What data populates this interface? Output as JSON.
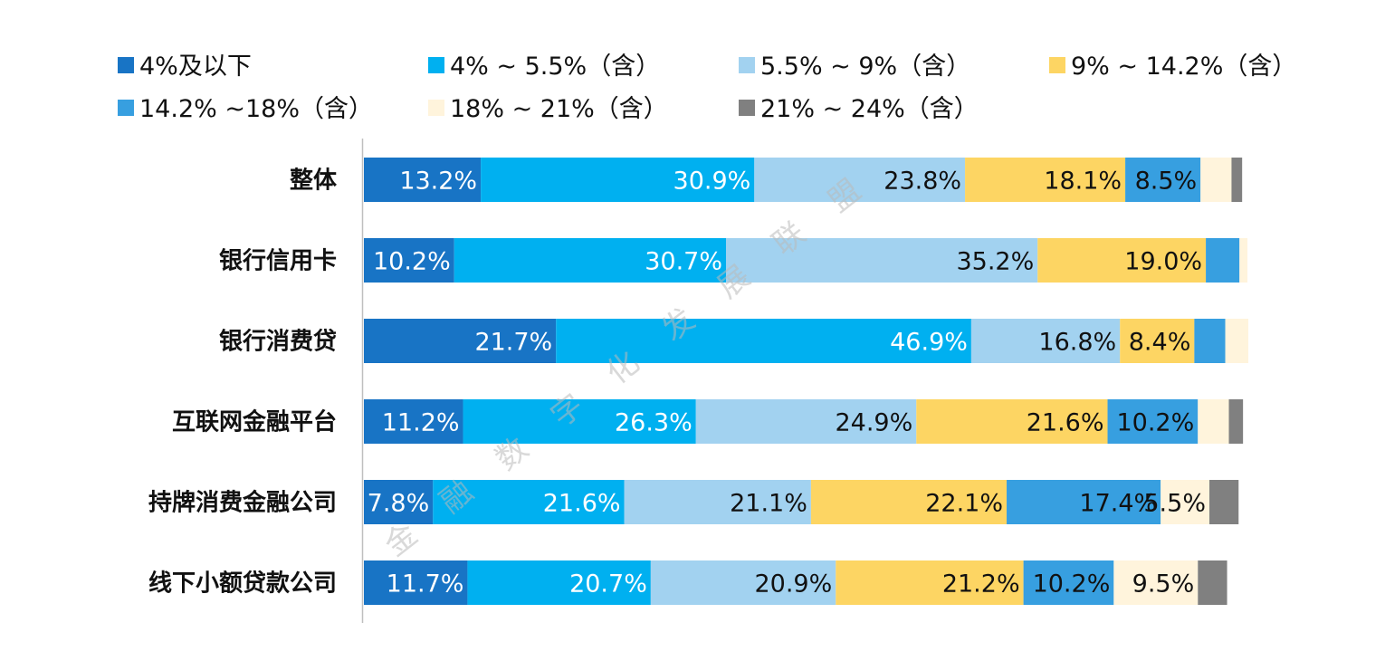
{
  "chart_data": {
    "type": "bar",
    "orientation": "horizontal",
    "stacked": true,
    "stack_mode": "percent",
    "categories": [
      "整体",
      "银行信用卡",
      "银行消费贷",
      "互联网金融平台",
      "持牌消费金融公司",
      "线下小额贷款公司"
    ],
    "series": [
      {
        "name": "4%及以下",
        "color": "#1874c5",
        "label_color": "#ffffff",
        "values": [
          13.2,
          10.2,
          21.7,
          11.2,
          7.8,
          11.7
        ],
        "labels": [
          "13.2%",
          "10.2%",
          "21.7%",
          "11.2%",
          "7.8%",
          "11.7%"
        ]
      },
      {
        "name": "4% ~ 5.5%（含）",
        "color": "#00b0f0",
        "label_color": "#ffffff",
        "values": [
          30.9,
          30.7,
          46.9,
          26.3,
          21.6,
          20.7
        ],
        "labels": [
          "30.9%",
          "30.7%",
          "46.9%",
          "26.3%",
          "21.6%",
          "20.7%"
        ]
      },
      {
        "name": "5.5% ~ 9%（含）",
        "color": "#a2d2f0",
        "label_color": "#111111",
        "values": [
          23.8,
          35.2,
          16.8,
          24.9,
          21.1,
          20.9
        ],
        "labels": [
          "23.8%",
          "35.2%",
          "16.8%",
          "24.9%",
          "21.1%",
          "20.9%"
        ]
      },
      {
        "name": "9% ~ 14.2%（含）",
        "color": "#fdd563",
        "label_color": "#111111",
        "values": [
          18.1,
          19.0,
          8.4,
          21.6,
          22.1,
          21.2
        ],
        "labels": [
          "18.1%",
          "19.0%",
          "8.4%",
          "21.6%",
          "22.1%",
          "21.2%"
        ]
      },
      {
        "name": "14.2% ~18%（含）",
        "color": "#379fe0",
        "label_color": "#111111",
        "values": [
          8.5,
          3.8,
          3.5,
          10.2,
          17.4,
          10.2
        ],
        "labels": [
          "8.5%",
          "",
          "",
          "10.2%",
          "17.4%",
          "10.2%"
        ]
      },
      {
        "name": "18% ~ 21%（含）",
        "color": "#fff4dc",
        "label_color": "#111111",
        "values": [
          3.5,
          0.9,
          2.6,
          3.5,
          5.5,
          9.5
        ],
        "labels": [
          "",
          "",
          "",
          "",
          "5.5%",
          "9.5%"
        ]
      },
      {
        "name": "21% ~ 24%（含）",
        "color": "#808080",
        "label_color": "#111111",
        "values": [
          1.2,
          0,
          0,
          1.6,
          3.3,
          3.3
        ],
        "labels": [
          "",
          "",
          "",
          "",
          "",
          ""
        ]
      }
    ],
    "xlim": [
      0,
      100
    ],
    "legend_position": "top",
    "grid": false
  },
  "watermark": {
    "characters": [
      "金",
      "融",
      "数",
      "字",
      "化",
      "发",
      "展",
      "联",
      "盟"
    ],
    "color": "#b9b9b9"
  }
}
